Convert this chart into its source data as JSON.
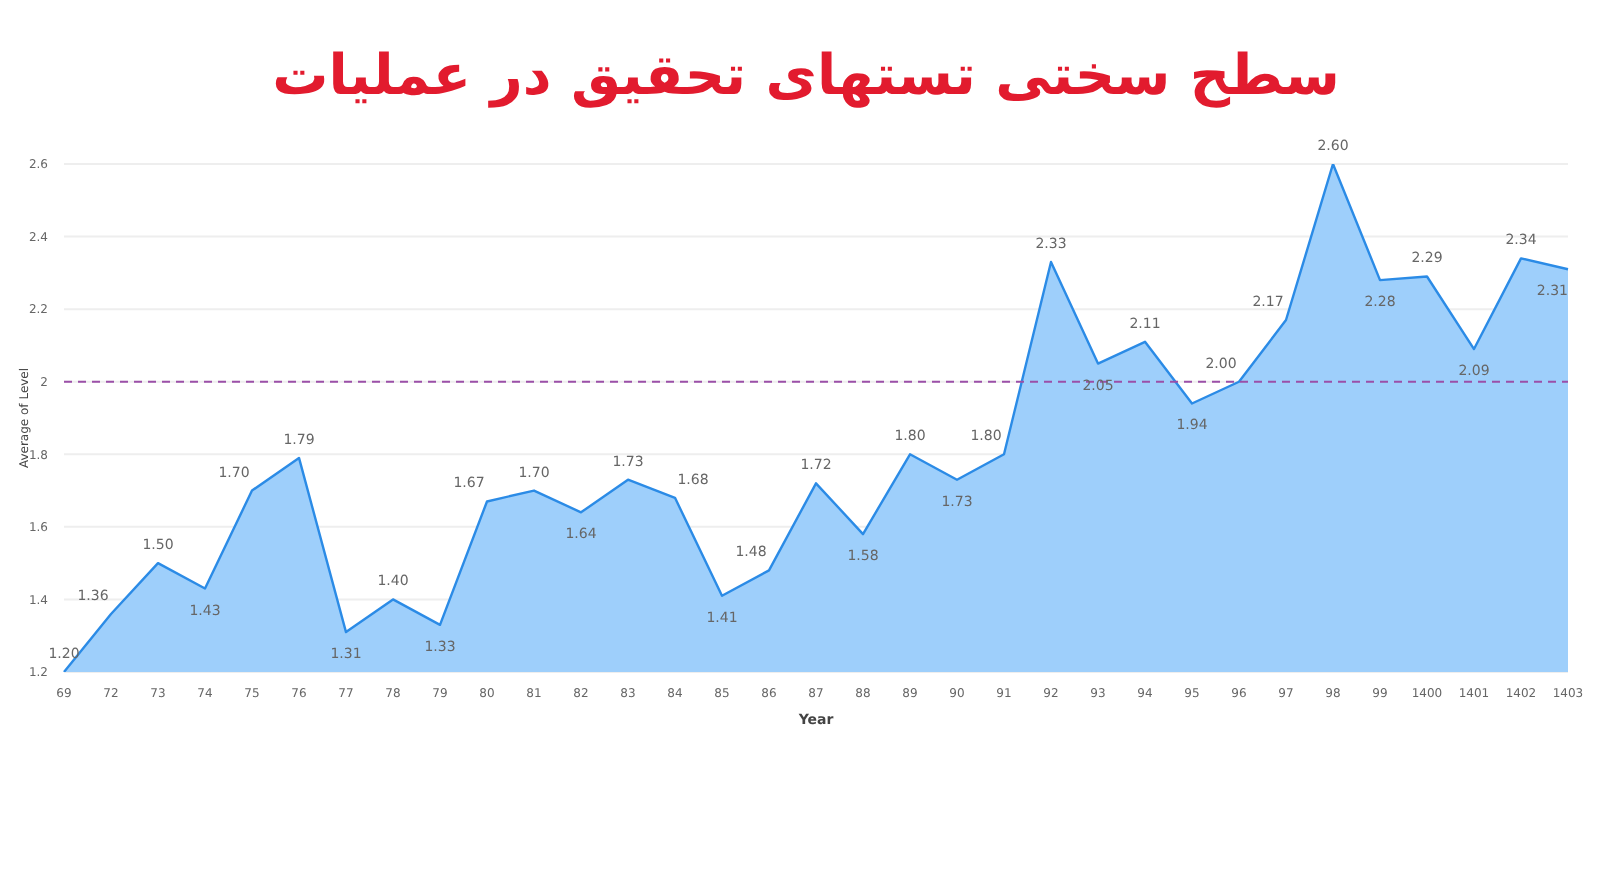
{
  "chart_data": {
    "type": "area",
    "title": "سطح سختی تستهای تحقیق در عملیات",
    "xlabel": "Year",
    "ylabel": "Average of Level",
    "categories": [
      "69",
      "72",
      "73",
      "74",
      "75",
      "76",
      "77",
      "78",
      "79",
      "80",
      "81",
      "82",
      "83",
      "84",
      "85",
      "86",
      "87",
      "88",
      "89",
      "90",
      "91",
      "92",
      "93",
      "94",
      "95",
      "96",
      "97",
      "98",
      "99",
      "1400",
      "1401",
      "1402",
      "1403"
    ],
    "series": [
      {
        "color": "#2b8be6",
        "values": [
          1.2,
          1.36,
          1.5,
          1.43,
          1.7,
          1.79,
          1.31,
          1.4,
          1.33,
          1.67,
          1.7,
          1.64,
          1.73,
          1.68,
          1.41,
          1.48,
          1.72,
          1.58,
          1.8,
          1.73,
          1.8,
          2.33,
          2.05,
          2.11,
          1.94,
          2.0,
          2.17,
          2.6,
          2.28,
          2.29,
          2.09,
          2.34,
          2.31
        ]
      }
    ],
    "ylim": [
      1.2,
      2.6
    ],
    "yticks": [
      1.2,
      1.4,
      1.6,
      1.8,
      2.0,
      2.2,
      2.4,
      2.6
    ],
    "grid": "y",
    "value_labels": [
      "1.20",
      "1.36",
      "1.50",
      "1.43",
      "1.70",
      "1.79",
      "1.31",
      "1.40",
      "1.33",
      "1.67",
      "1.70",
      "1.64",
      "1.73",
      "1.68",
      "1.41",
      "1.48",
      "1.72",
      "1.58",
      "1.80",
      "1.73",
      "1.80",
      "2.33",
      "2.05",
      "2.11",
      "1.94",
      "2.00",
      "2.17",
      "2.60",
      "2.28",
      "2.29",
      "2.09",
      "2.34",
      "2.31"
    ],
    "ref_lines": [
      {
        "axis": "y",
        "value": 2.0,
        "color": "#9b4fa8",
        "line_style": "dashed"
      }
    ]
  }
}
